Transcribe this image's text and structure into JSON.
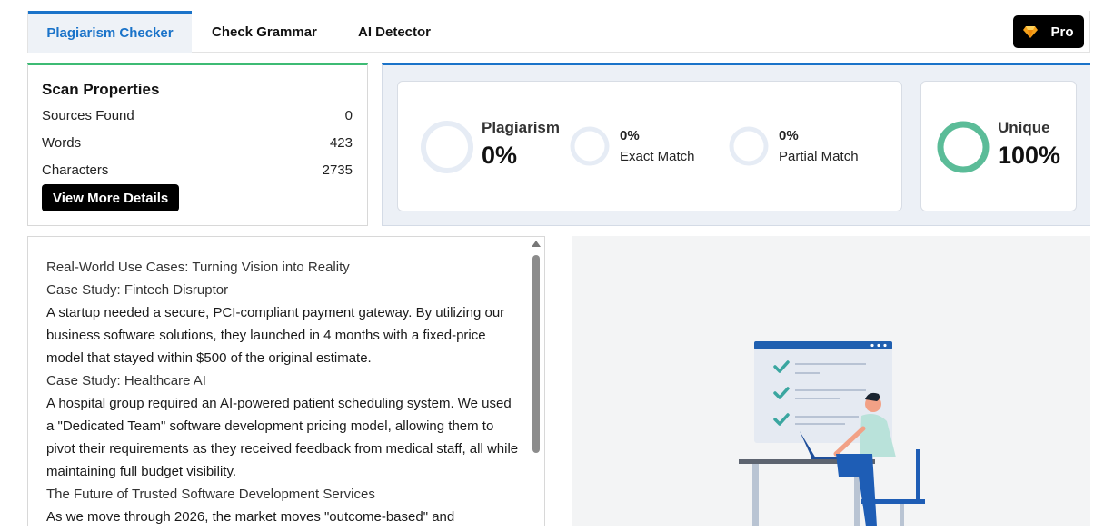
{
  "tabs": [
    {
      "label": "Plagiarism Checker",
      "active": true
    },
    {
      "label": "Check Grammar",
      "active": false
    },
    {
      "label": "AI Detector",
      "active": false
    }
  ],
  "pro": {
    "label": "Pro",
    "icon": "diamond-icon"
  },
  "scan": {
    "title": "Scan Properties",
    "rows": [
      {
        "label": "Sources Found",
        "value": "0"
      },
      {
        "label": "Words",
        "value": "423"
      },
      {
        "label": "Characters",
        "value": "2735"
      }
    ],
    "details_label": "View More Details"
  },
  "results": {
    "plagiarism": {
      "label": "Plagiarism",
      "value": "0%"
    },
    "exact": {
      "label": "Exact Match",
      "value": "0%"
    },
    "partial": {
      "label": "Partial Match",
      "value": "0%"
    },
    "unique": {
      "label": "Unique",
      "value": "100%"
    }
  },
  "text": {
    "lines": [
      "Real-World Use Cases: Turning Vision into Reality",
      "Case Study: Fintech Disruptor",
      "A startup needed a secure, PCI-compliant payment gateway. By utilizing our business software solutions, they launched in 4 months with a fixed-price model that stayed within $500 of the original estimate.",
      "Case Study: Healthcare AI",
      "A hospital group required an AI-powered patient scheduling system. We used a \"Dedicated Team\" software development pricing model, allowing them to pivot their requirements as they received feedback from medical staff, all while maintaining full budget visibility.",
      "The Future of Trusted Software Development Services",
      "As we move through 2026, the market moves \"outcome-based\" and"
    ]
  },
  "colors": {
    "accent_blue": "#1a73c9",
    "accent_green": "#3dbb74",
    "unique_ring": "#5bbc98",
    "ring_empty": "#e6ecf5"
  }
}
